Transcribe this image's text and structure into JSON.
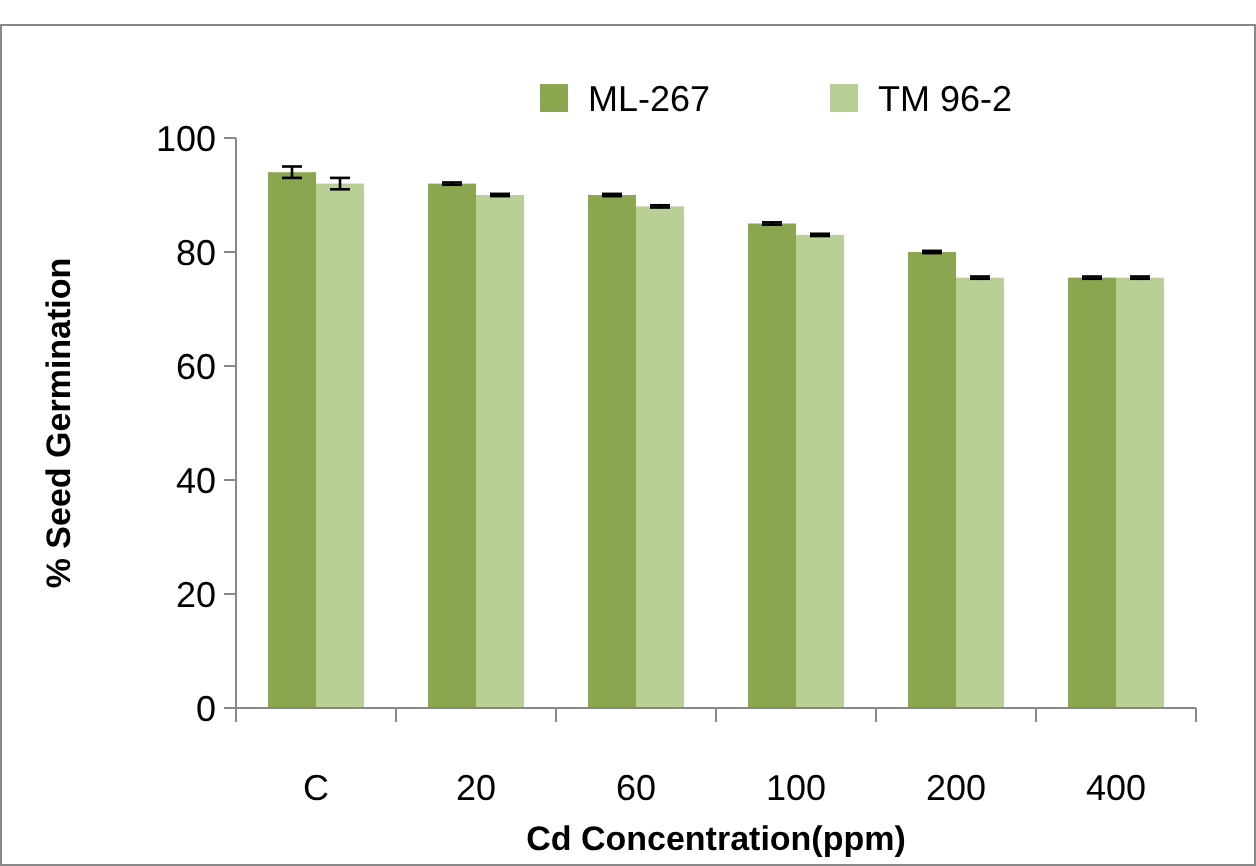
{
  "chart_data": {
    "type": "bar",
    "xlabel": "Cd Concentration(ppm)",
    "ylabel": "% Seed Germination",
    "categories": [
      "C",
      "20",
      "60",
      "100",
      "200",
      "400"
    ],
    "series": [
      {
        "name": "ML-267",
        "color": "#8aa64e",
        "values": [
          94,
          92,
          90,
          85,
          80,
          75.5
        ],
        "errors": [
          1,
          0.2,
          0.2,
          0.2,
          0.2,
          0.2
        ]
      },
      {
        "name": "TM 96-2",
        "color": "#b9cf95",
        "values": [
          92,
          90,
          88,
          83,
          75.5,
          75.5
        ],
        "errors": [
          1,
          0.2,
          0.2,
          0.2,
          0.2,
          0.2
        ]
      }
    ],
    "ylim": [
      0,
      100
    ],
    "yticks": [
      0,
      20,
      40,
      60,
      80,
      100
    ],
    "grid": false,
    "legend": "top"
  }
}
